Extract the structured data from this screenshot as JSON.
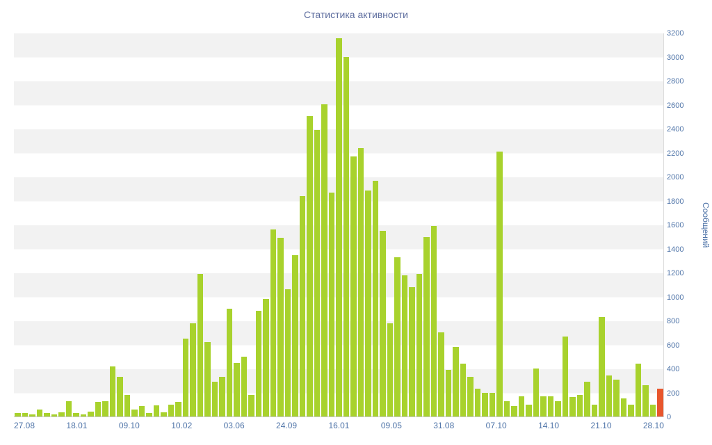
{
  "title": "Статистика активности",
  "colors": {
    "bar": "#a8d22d",
    "bar_highlight": "#e8562d",
    "title_text": "#5b6b9d",
    "tick_text": "#4f74a8",
    "stripe": "#f2f2f2",
    "axis_line": "#c8c8c8"
  },
  "chart_data": {
    "type": "bar",
    "title": "Статистика активности",
    "xlabel": "",
    "ylabel": "Сообщений",
    "ylim": [
      0,
      3200
    ],
    "y_tick_step": 200,
    "y_ticks": [
      0,
      200,
      400,
      600,
      800,
      1000,
      1200,
      1400,
      1600,
      1800,
      2000,
      2200,
      2400,
      2600,
      2800,
      3000,
      3200
    ],
    "y_axis_side": "right",
    "grid": "striped-horizontal-bands",
    "legend": "none",
    "x_tick_labels": [
      "27.08",
      "18.01",
      "09.10",
      "10.02",
      "03.06",
      "24.09",
      "16.01",
      "09.05",
      "31.08",
      "07.10",
      "14.10",
      "21.10",
      "28.10"
    ],
    "values": [
      30,
      30,
      20,
      60,
      30,
      20,
      35,
      130,
      30,
      20,
      40,
      120,
      130,
      420,
      330,
      180,
      60,
      90,
      30,
      95,
      35,
      100,
      120,
      650,
      780,
      1190,
      620,
      290,
      330,
      900,
      450,
      500,
      180,
      880,
      980,
      1560,
      1490,
      1060,
      1350,
      1840,
      2510,
      2390,
      2610,
      1870,
      3160,
      3000,
      2170,
      2240,
      1890,
      1970,
      1550,
      780,
      1330,
      1180,
      1080,
      1190,
      1500,
      1590,
      700,
      390,
      580,
      440,
      330,
      230,
      200,
      200,
      2210,
      130,
      90,
      170,
      100,
      400,
      170,
      170,
      130,
      670,
      160,
      180,
      290,
      100,
      830,
      340,
      310,
      150,
      100,
      440,
      260,
      100,
      230
    ],
    "highlight_last_bar": true
  }
}
